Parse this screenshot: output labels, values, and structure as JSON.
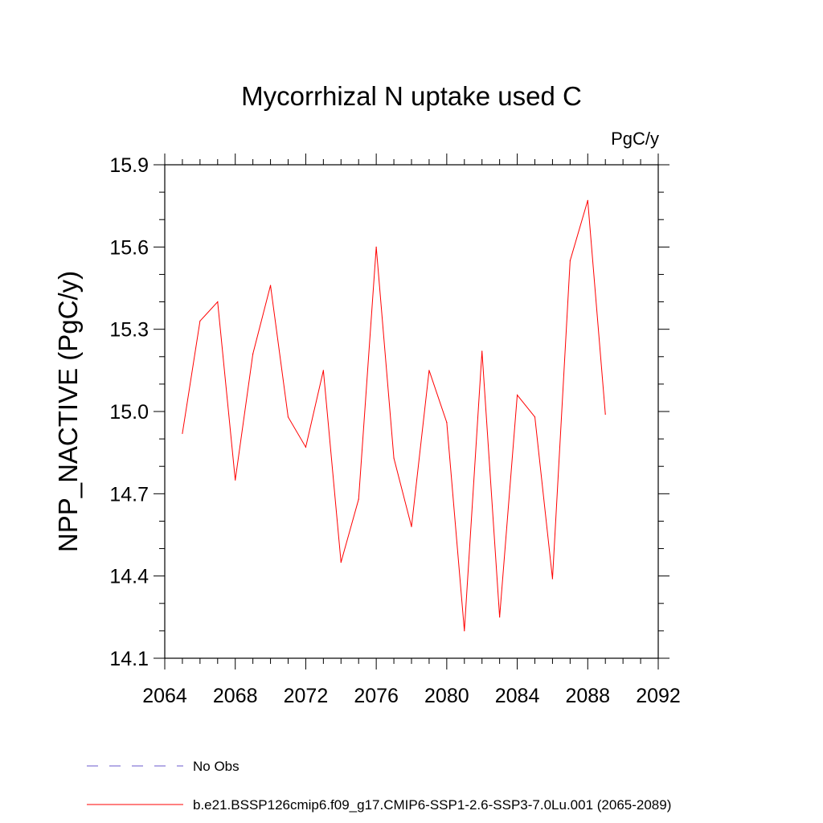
{
  "chart_data": {
    "type": "line",
    "title": "Mycorrhizal N uptake used C",
    "units": "PgC/y",
    "ylabel": "NPP_NACTIVE  (PgC/y)",
    "xlabel": "",
    "xlim": [
      2064,
      2092
    ],
    "ylim": [
      14.1,
      15.9
    ],
    "x_ticks": [
      "2064",
      "2068",
      "2072",
      "2076",
      "2080",
      "2084",
      "2088",
      "2092"
    ],
    "y_ticks": [
      "14.1",
      "14.4",
      "14.7",
      "15.0",
      "15.3",
      "15.6",
      "15.9"
    ],
    "x": [
      2065,
      2066,
      2067,
      2068,
      2069,
      2070,
      2071,
      2072,
      2073,
      2074,
      2075,
      2076,
      2077,
      2078,
      2079,
      2080,
      2081,
      2082,
      2083,
      2084,
      2085,
      2086,
      2087,
      2088,
      2089
    ],
    "series": [
      {
        "name": "b.e21.BSSP126cmip6.f09_g17.CMIP6-SSP1-2.6-SSP3-7.0Lu.001 (2065-2089)",
        "color": "#ff0000",
        "values": [
          14.92,
          15.33,
          15.4,
          14.75,
          15.21,
          15.46,
          14.98,
          14.87,
          15.15,
          14.45,
          14.68,
          15.6,
          14.83,
          14.58,
          15.15,
          14.96,
          14.2,
          15.22,
          14.25,
          15.06,
          14.98,
          14.39,
          15.55,
          15.77,
          14.99
        ]
      }
    ],
    "legend": [
      {
        "label": "No Obs",
        "color": "#6a5acd",
        "style": "dashed"
      },
      {
        "label": "b.e21.BSSP126cmip6.f09_g17.CMIP6-SSP1-2.6-SSP3-7.0Lu.001 (2065-2089)",
        "color": "#ff0000",
        "style": "solid"
      }
    ],
    "grid": false,
    "legend_position": "bottom"
  }
}
